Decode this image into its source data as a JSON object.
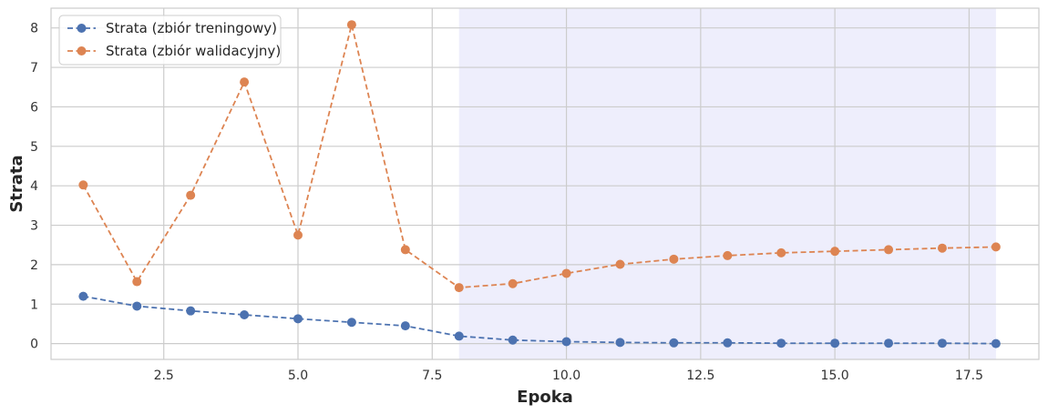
{
  "chart_data": {
    "type": "line",
    "title": "",
    "xlabel": "Epoka",
    "ylabel": "Strata",
    "xlim": [
      0.4,
      18.8
    ],
    "ylim": [
      -0.4,
      8.5
    ],
    "xticks": [
      2.5,
      5.0,
      7.5,
      10.0,
      12.5,
      15.0,
      17.5
    ],
    "xtick_labels": [
      "2.5",
      "5.0",
      "7.5",
      "10.0",
      "12.5",
      "15.0",
      "17.5"
    ],
    "yticks": [
      0,
      1,
      2,
      3,
      4,
      5,
      6,
      7,
      8
    ],
    "ytick_labels": [
      "0",
      "1",
      "2",
      "3",
      "4",
      "5",
      "6",
      "7",
      "8"
    ],
    "grid": true,
    "legend_position": "top-left",
    "shaded_region": {
      "x_start": 8,
      "x_end": 18,
      "color": "#e8e8fb"
    },
    "x": [
      1,
      2,
      3,
      4,
      5,
      6,
      7,
      8,
      9,
      10,
      11,
      12,
      13,
      14,
      15,
      16,
      17,
      18
    ],
    "series": [
      {
        "name": "Strata (zbiór treningowy)",
        "color": "#4c72b0",
        "values": [
          1.2,
          0.95,
          0.83,
          0.73,
          0.63,
          0.54,
          0.45,
          0.19,
          0.09,
          0.05,
          0.03,
          0.02,
          0.02,
          0.01,
          0.01,
          0.01,
          0.01,
          0.0
        ]
      },
      {
        "name": "Strata (zbiór walidacyjny)",
        "color": "#dd8452",
        "values": [
          4.02,
          1.57,
          3.76,
          6.63,
          2.75,
          8.08,
          2.38,
          1.42,
          1.52,
          1.78,
          2.01,
          2.14,
          2.23,
          2.3,
          2.34,
          2.38,
          2.42,
          2.45
        ]
      }
    ]
  }
}
